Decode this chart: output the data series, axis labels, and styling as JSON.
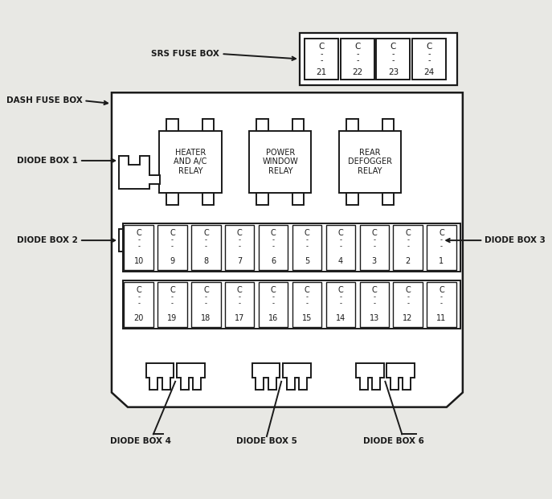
{
  "bg_color": "#e8e8e4",
  "line_color": "#1a1a1a",
  "fill_color": "#ffffff",
  "srs_fuse_nums": [
    "21",
    "22",
    "23",
    "24"
  ],
  "top_row_fuses": [
    "10",
    "9",
    "8",
    "7",
    "6",
    "5",
    "4",
    "3",
    "2",
    "1"
  ],
  "bottom_row_fuses": [
    "20",
    "19",
    "18",
    "17",
    "16",
    "15",
    "14",
    "13",
    "12",
    "11"
  ],
  "relay_labels": [
    "HEATER\nAND A/C\nRELAY",
    "POWER\nWINDOW\nRELAY",
    "REAR\nDEFOGGER\nRELAY"
  ],
  "label_dash_fuse_box": "DASH FUSE BOX",
  "label_diode1": "DIODE BOX 1",
  "label_diode2": "DIODE BOX 2",
  "label_diode3": "DIODE BOX 3",
  "label_diode4": "DIODE BOX 4",
  "label_diode5": "DIODE BOX 5",
  "label_diode6": "DIODE BOX 6",
  "label_srs": "SRS FUSE BOX"
}
